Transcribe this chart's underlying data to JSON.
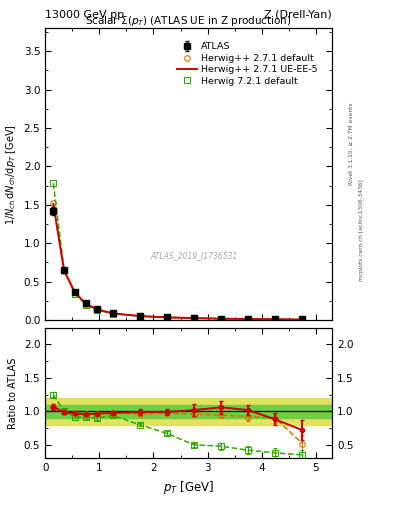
{
  "title_top_left": "13000 GeV pp",
  "title_top_right": "Z (Drell-Yan)",
  "plot_title": "Scalar Σ(p_T) (ATLAS UE in Z production)",
  "ylabel_main": "1/N$_{ch}$ dN$_{ch}$/dp$_T$ [GeV]",
  "ylabel_ratio": "Ratio to ATLAS",
  "xlabel": "p$_T$ [GeV]",
  "watermark": "ATLAS_2019_I1736531",
  "rivet_text": "Rivet 3.1.10, ≥ 2.7M events",
  "mcplots_text": "mcplots.cern.ch [arXiv:1306.3436]",
  "atlas_x": [
    0.15,
    0.35,
    0.55,
    0.75,
    0.95,
    1.25,
    1.75,
    2.25,
    2.75,
    3.25,
    3.75,
    4.25,
    4.75
  ],
  "atlas_y": [
    1.42,
    0.65,
    0.37,
    0.22,
    0.145,
    0.088,
    0.052,
    0.035,
    0.025,
    0.018,
    0.013,
    0.01,
    0.007
  ],
  "atlas_yerr": [
    0.05,
    0.02,
    0.012,
    0.008,
    0.005,
    0.004,
    0.003,
    0.002,
    0.0015,
    0.001,
    0.001,
    0.001,
    0.001
  ],
  "hw271_x": [
    0.15,
    0.35,
    0.55,
    0.75,
    0.95,
    1.25,
    1.75,
    2.25,
    2.75,
    3.25,
    3.75,
    4.25,
    4.75
  ],
  "hw271_y": [
    1.52,
    0.64,
    0.36,
    0.21,
    0.14,
    0.086,
    0.05,
    0.034,
    0.024,
    0.017,
    0.012,
    0.009,
    0.005
  ],
  "hw271_color": "#cc7700",
  "hw271_label": "Herwig++ 2.7.1 default",
  "hw271ue_x": [
    0.15,
    0.35,
    0.55,
    0.75,
    0.95,
    1.25,
    1.75,
    2.25,
    2.75,
    3.25,
    3.75,
    4.25,
    4.75
  ],
  "hw271ue_y": [
    1.51,
    0.64,
    0.36,
    0.21,
    0.14,
    0.086,
    0.051,
    0.034,
    0.025,
    0.018,
    0.013,
    0.01,
    0.006
  ],
  "hw271ue_color": "#cc0000",
  "hw271ue_label": "Herwig++ 2.7.1 UE-EE-5",
  "hw721_x": [
    0.15,
    0.35,
    0.55,
    0.75,
    0.95,
    1.25,
    1.75,
    2.25,
    2.75,
    3.25,
    3.75,
    4.25,
    4.75
  ],
  "hw721_y": [
    1.78,
    0.65,
    0.34,
    0.2,
    0.13,
    0.083,
    0.052,
    0.034,
    0.022,
    0.014,
    0.01,
    0.007,
    0.004
  ],
  "hw721_color": "#33aa00",
  "hw721_label": "Herwig 7.2.1 default",
  "ratio_hw271_y": [
    1.07,
    0.985,
    0.973,
    0.955,
    0.966,
    0.977,
    0.962,
    0.971,
    0.96,
    0.944,
    0.923,
    0.9,
    0.52
  ],
  "ratio_hw271_yerr": [
    0.04,
    0.03,
    0.025,
    0.025,
    0.025,
    0.025,
    0.025,
    0.03,
    0.03,
    0.05,
    0.06,
    0.07,
    0.12
  ],
  "ratio_hw271ue_y": [
    1.065,
    0.985,
    0.973,
    0.955,
    0.966,
    0.977,
    0.99,
    0.99,
    1.02,
    1.06,
    1.02,
    0.88,
    0.72
  ],
  "ratio_hw271ue_yerr": [
    0.05,
    0.03,
    0.025,
    0.025,
    0.025,
    0.025,
    0.04,
    0.05,
    0.09,
    0.1,
    0.08,
    0.09,
    0.15
  ],
  "ratio_hw721_y": [
    1.25,
    1.0,
    0.92,
    0.91,
    0.9,
    0.94,
    0.8,
    0.67,
    0.5,
    0.48,
    0.42,
    0.38,
    0.35
  ],
  "ratio_hw721_yerr": [
    0.04,
    0.03,
    0.025,
    0.025,
    0.025,
    0.025,
    0.025,
    0.03,
    0.03,
    0.05,
    0.06,
    0.07,
    0.08
  ],
  "band_inner_lo": 0.9,
  "band_inner_hi": 1.1,
  "band_outer_lo": 0.8,
  "band_outer_hi": 1.2,
  "band_inner_color": "#66cc44",
  "band_outer_color": "#dddd44",
  "main_ylim": [
    0.0,
    3.8
  ],
  "ratio_ylim": [
    0.3,
    2.25
  ],
  "xlim": [
    0.0,
    5.3
  ],
  "main_yticks": [
    0.0,
    0.5,
    1.0,
    1.5,
    2.0,
    2.5,
    3.0,
    3.5
  ],
  "ratio_yticks": [
    0.5,
    1.0,
    1.5,
    2.0
  ],
  "xticks": [
    0,
    1,
    2,
    3,
    4,
    5
  ]
}
